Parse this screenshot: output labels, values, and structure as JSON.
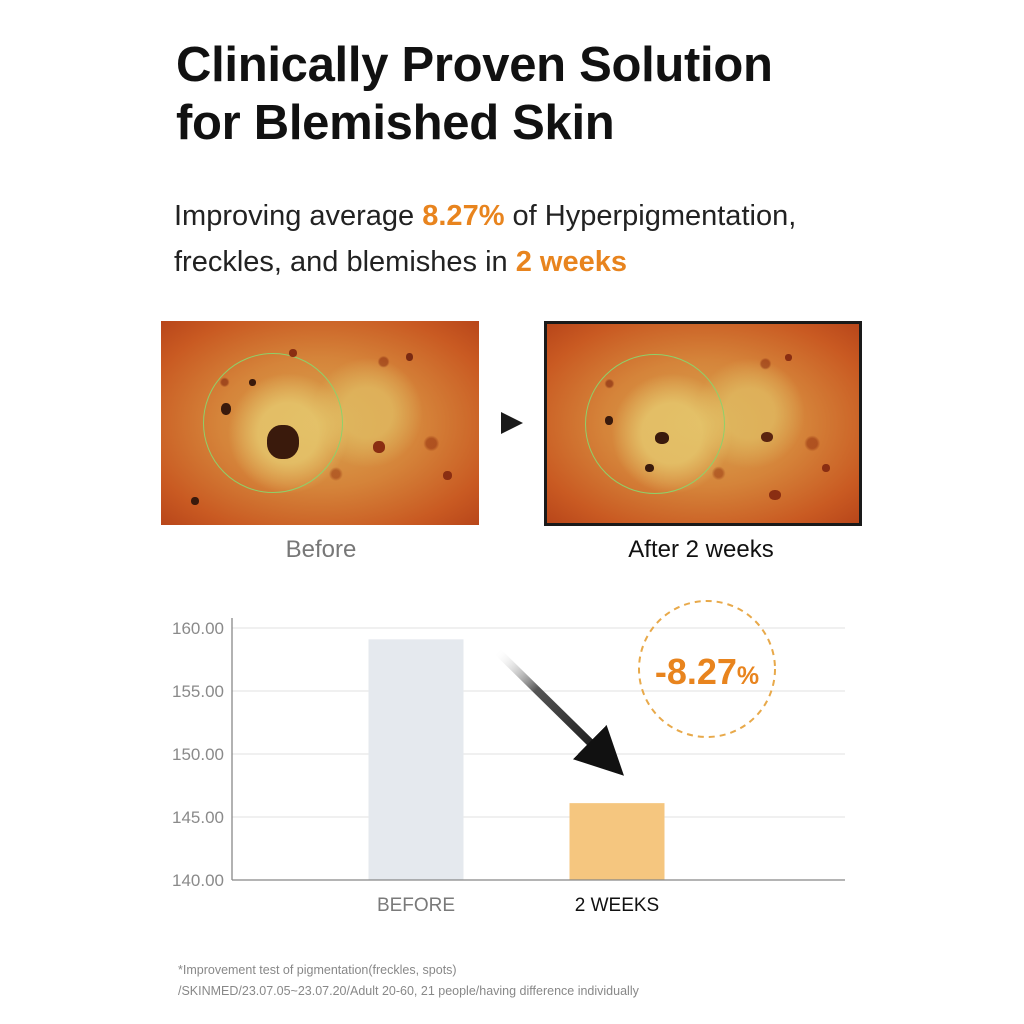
{
  "title": {
    "line1": "Clinically Proven Solution",
    "line2": "for Blemished Skin"
  },
  "subtitle": {
    "line1_pre": "Improving average ",
    "line1_highlight": "8.27%",
    "line1_post": " of Hyperpigmentation,",
    "line2_pre": "freckles, and blemishes in ",
    "line2_highlight": "2 weeks"
  },
  "photos": {
    "before_caption": "Before",
    "after_caption": "After 2 weeks"
  },
  "colors": {
    "accent": "#e8841e",
    "before_bar": "#e5e9ee",
    "after_bar": "#f5c67f",
    "grid": "#e2e2e2",
    "axis": "#888888"
  },
  "chart_data": {
    "type": "bar",
    "categories": [
      "BEFORE",
      "2 WEEKS"
    ],
    "values": [
      159.1,
      146.1
    ],
    "ylim": [
      140,
      160
    ],
    "yticks": [
      "160.00",
      "155.00",
      "150.00",
      "145.00",
      "140.00"
    ],
    "ytick_values": [
      160,
      155,
      150,
      145,
      140
    ],
    "grid": true,
    "annotation": {
      "value": "-8.27",
      "unit": "%"
    }
  },
  "footnote": {
    "line1": "*Improvement test of pigmentation(freckles, spots)",
    "line2": "/SKINMED/23.07.05~23.07.20/Adult 20-60, 21 people/having difference individually"
  }
}
